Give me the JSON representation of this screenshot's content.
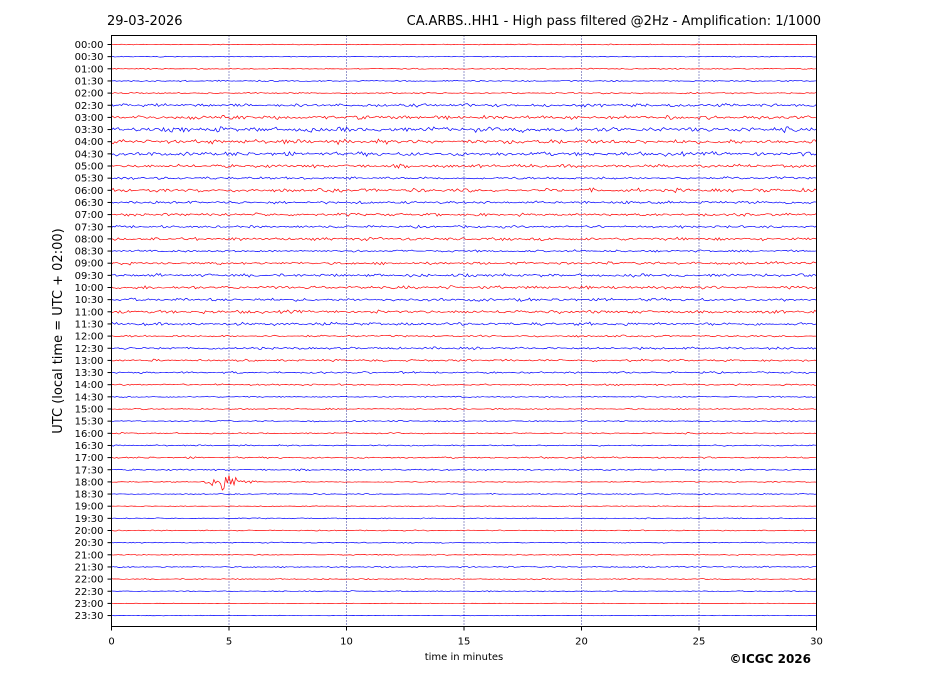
{
  "header": {
    "date": "29-03-2026",
    "title": "CA.ARBS..HH1 - High pass filtered @2Hz - Amplification: 1/1000"
  },
  "footer": {
    "copyright": "©ICGC 2026"
  },
  "colors": {
    "odd_trace": "#ff0000",
    "even_trace": "#0000ff",
    "grid": "#000080"
  },
  "chart_data": {
    "type": "line",
    "xlabel": "time in minutes",
    "ylabel": "UTC (local time = UTC + 02:00)",
    "xlim": [
      0,
      30
    ],
    "x_ticks": [
      0,
      5,
      10,
      15,
      20,
      25,
      30
    ],
    "grid": "vertical dotted at 5-minute ticks",
    "rows": [
      "00:00",
      "00:30",
      "01:00",
      "01:30",
      "02:00",
      "02:30",
      "03:00",
      "03:30",
      "04:00",
      "04:30",
      "05:00",
      "05:30",
      "06:00",
      "06:30",
      "07:00",
      "07:30",
      "08:00",
      "08:30",
      "09:00",
      "09:30",
      "10:00",
      "10:30",
      "11:00",
      "11:30",
      "12:00",
      "12:30",
      "13:00",
      "13:30",
      "14:00",
      "14:30",
      "15:00",
      "15:30",
      "16:00",
      "16:30",
      "17:00",
      "17:30",
      "18:00",
      "18:30",
      "19:00",
      "19:30",
      "20:00",
      "20:30",
      "21:00",
      "21:30",
      "22:00",
      "22:30",
      "23:00",
      "23:30"
    ],
    "row_noise_level": [
      0.3,
      0.3,
      0.4,
      0.5,
      0.5,
      1.2,
      1.4,
      1.8,
      1.6,
      1.5,
      1.2,
      1.0,
      1.3,
      1.0,
      1.1,
      0.9,
      1.1,
      0.8,
      1.0,
      1.1,
      1.2,
      1.1,
      1.2,
      1.1,
      0.7,
      0.9,
      0.8,
      0.7,
      0.6,
      0.5,
      0.5,
      0.5,
      0.5,
      0.5,
      0.6,
      0.6,
      0.4,
      0.4,
      0.3,
      0.4,
      0.4,
      0.4,
      0.4,
      0.5,
      0.4,
      0.4,
      0.2,
      0.2
    ],
    "events": [
      {
        "row": "18:00",
        "start_min": 3.8,
        "peak_min": 4.7,
        "end_min": 6.5,
        "relative_amplitude": 10
      }
    ]
  }
}
